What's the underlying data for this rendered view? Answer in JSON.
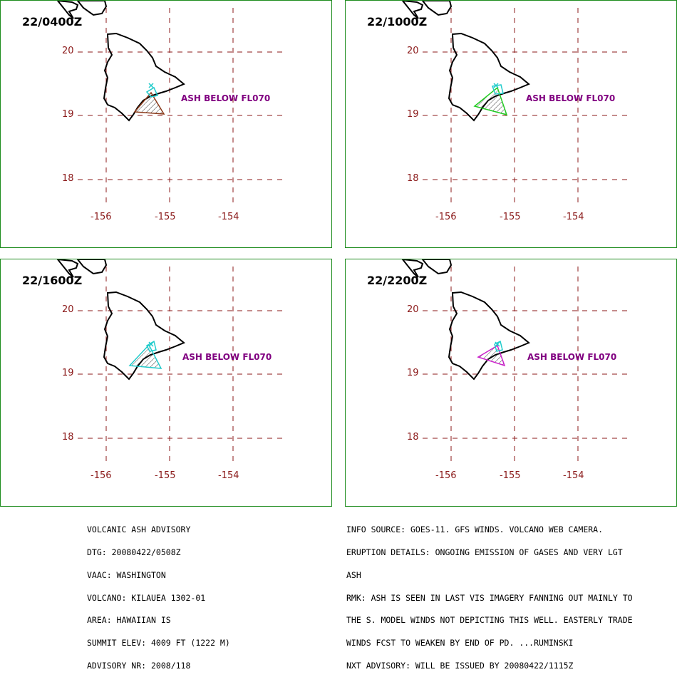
{
  "panels": [
    {
      "time": "22/0400Z",
      "ash_label": "ASH BELOW FL070",
      "ash_color": "#8b3a1a",
      "lat_labels": [
        "20",
        "19",
        "18"
      ],
      "lon_labels": [
        "-156",
        "-155",
        "-154"
      ]
    },
    {
      "time": "22/1000Z",
      "ash_label": "ASH BELOW FL070",
      "ash_color": "#22cc22",
      "lat_labels": [
        "20",
        "19",
        "18"
      ],
      "lon_labels": [
        "-156",
        "-155",
        "-154"
      ]
    },
    {
      "time": "22/1600Z",
      "ash_label": "ASH BELOW FL070",
      "ash_color": "#22cccc",
      "lat_labels": [
        "20",
        "19",
        "18"
      ],
      "lon_labels": [
        "-156",
        "-155",
        "-154"
      ]
    },
    {
      "time": "22/2200Z",
      "ash_label": "ASH BELOW FL070",
      "ash_color": "#cc22cc",
      "lat_labels": [
        "20",
        "19",
        "18"
      ],
      "lon_labels": [
        "-156",
        "-155",
        "-154"
      ]
    }
  ],
  "advisory_left": [
    "VOLCANIC ASH ADVISORY",
    "DTG: 20080422/0508Z",
    "VAAC: WASHINGTON",
    "VOLCANO: KILAUEA 1302-01",
    "AREA: HAWAIIAN IS",
    "SUMMIT ELEV: 4009 FT (1222 M)",
    "ADVISORY NR: 2008/118"
  ],
  "advisory_right": [
    "INFO SOURCE: GOES-11. GFS WINDS. VOLCANO WEB CAMERA.",
    "ERUPTION DETAILS: ONGOING EMISSION OF GASES AND VERY LGT",
    "ASH",
    "RMK: ASH IS SEEN IN LAST VIS IMAGERY FANNING OUT MAINLY TO",
    "THE S. MODEL WINDS NOT DEPICTING THIS WELL. EASTERLY TRADE",
    "WINDS FCST TO WEAKEN BY END OF PD. ...RUMINSKI",
    "NXT ADVISORY: WILL BE ISSUED BY 20080422/1115Z"
  ],
  "colors": {
    "frame": "#1e8c1e",
    "grid": "#8b1a1a",
    "coast": "#000000",
    "volcano_marker": "#22cccc",
    "ash_text": "#800080"
  },
  "icons": [
    "volcano-marker-icon"
  ]
}
